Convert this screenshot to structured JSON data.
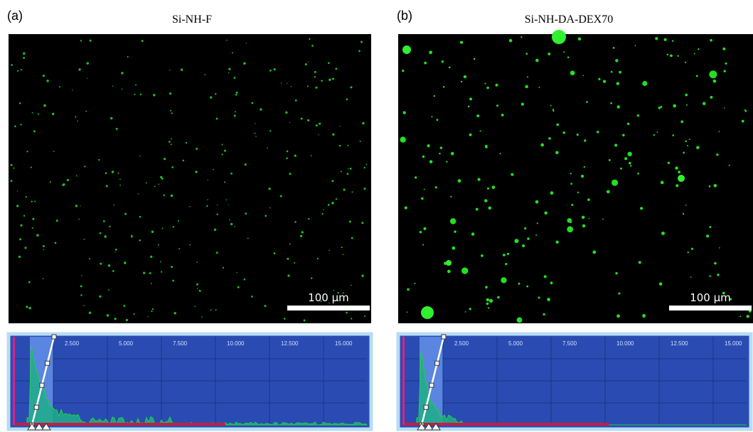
{
  "panels": [
    {
      "label": "(a)",
      "title": "Si-NH-F",
      "scale_bar": "100 µm",
      "histogram_ticks": [
        "2.500",
        "5.000",
        "7.500",
        "10.000",
        "12.500",
        "15.000"
      ]
    },
    {
      "label": "(b)",
      "title": "Si-NH-DA-DEX70",
      "scale_bar": "100 µm",
      "histogram_ticks": [
        "2.500",
        "5.000",
        "7.500",
        "10.000",
        "12.500",
        "15.000"
      ]
    }
  ]
}
